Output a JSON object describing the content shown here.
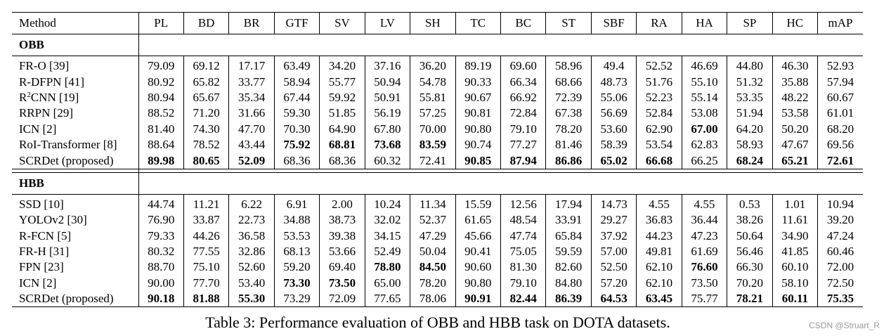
{
  "columns": [
    "Method",
    "PL",
    "BD",
    "BR",
    "GTF",
    "SV",
    "LV",
    "SH",
    "TC",
    "BC",
    "ST",
    "SBF",
    "RA",
    "HA",
    "SP",
    "HC",
    "mAP"
  ],
  "sections": [
    {
      "title": "OBB",
      "rows": [
        {
          "method": "FR-O [39]",
          "values": [
            "79.09",
            "69.12",
            "17.17",
            "63.49",
            "34.20",
            "37.16",
            "36.20",
            "89.19",
            "69.60",
            "58.96",
            "49.4",
            "52.52",
            "46.69",
            "44.80",
            "46.30",
            "52.93"
          ],
          "bold": []
        },
        {
          "method": "R-DFPN [41]",
          "values": [
            "80.92",
            "65.82",
            "33.77",
            "58.94",
            "55.77",
            "50.94",
            "54.78",
            "90.33",
            "66.34",
            "68.66",
            "48.73",
            "51.76",
            "55.10",
            "51.32",
            "35.88",
            "57.94"
          ],
          "bold": []
        },
        {
          "method_pre": "R",
          "method_sup": "2",
          "method_post": "CNN [19]",
          "values": [
            "80.94",
            "65.67",
            "35.34",
            "67.44",
            "59.92",
            "50.91",
            "55.81",
            "90.67",
            "66.92",
            "72.39",
            "55.06",
            "52.23",
            "55.14",
            "53.35",
            "48.22",
            "60.67"
          ],
          "bold": []
        },
        {
          "method": "RRPN [29]",
          "values": [
            "88.52",
            "71.20",
            "31.66",
            "59.30",
            "51.85",
            "56.19",
            "57.25",
            "90.81",
            "72.84",
            "67.38",
            "56.69",
            "52.84",
            "53.08",
            "51.94",
            "53.58",
            "61.01"
          ],
          "bold": []
        },
        {
          "method": "ICN [2]",
          "values": [
            "81.40",
            "74.30",
            "47.70",
            "70.30",
            "64.90",
            "67.80",
            "70.00",
            "90.80",
            "79.10",
            "78.20",
            "53.60",
            "62.90",
            "67.00",
            "64.20",
            "50.20",
            "68.20"
          ],
          "bold": [
            12
          ]
        },
        {
          "method": "RoI-Transformer [8]",
          "values": [
            "88.64",
            "78.52",
            "43.44",
            "75.92",
            "68.81",
            "73.68",
            "83.59",
            "90.74",
            "77.27",
            "81.46",
            "58.39",
            "53.54",
            "62.83",
            "58.93",
            "47.67",
            "69.56"
          ],
          "bold": [
            3,
            4,
            5,
            6
          ]
        },
        {
          "method": "SCRDet (proposed)",
          "values": [
            "89.98",
            "80.65",
            "52.09",
            "68.36",
            "68.36",
            "60.32",
            "72.41",
            "90.85",
            "87.94",
            "86.86",
            "65.02",
            "66.68",
            "66.25",
            "68.24",
            "65.21",
            "72.61"
          ],
          "bold": [
            0,
            1,
            2,
            7,
            8,
            9,
            10,
            11,
            13,
            14,
            15
          ]
        }
      ]
    },
    {
      "title": "HBB",
      "rows": [
        {
          "method": "SSD [10]",
          "values": [
            "44.74",
            "11.21",
            "6.22",
            "6.91",
            "2.00",
            "10.24",
            "11.34",
            "15.59",
            "12.56",
            "17.94",
            "14.73",
            "4.55",
            "4.55",
            "0.53",
            "1.01",
            "10.94"
          ],
          "bold": []
        },
        {
          "method": "YOLOv2 [30]",
          "values": [
            "76.90",
            "33.87",
            "22.73",
            "34.88",
            "38.73",
            "32.02",
            "52.37",
            "61.65",
            "48.54",
            "33.91",
            "29.27",
            "36.83",
            "36.44",
            "38.26",
            "11.61",
            "39.20"
          ],
          "bold": []
        },
        {
          "method": "R-FCN [5]",
          "values": [
            "79.33",
            "44.26",
            "36.58",
            "53.53",
            "39.38",
            "34.15",
            "47.29",
            "45.66",
            "47.74",
            "65.84",
            "37.92",
            "44.23",
            "47.23",
            "50.64",
            "34.90",
            "47.24"
          ],
          "bold": []
        },
        {
          "method": "FR-H [31]",
          "values": [
            "80.32",
            "77.55",
            "32.86",
            "68.13",
            "53.66",
            "52.49",
            "50.04",
            "90.41",
            "75.05",
            "59.59",
            "57.00",
            "49.81",
            "61.69",
            "56.46",
            "41.85",
            "60.46"
          ],
          "bold": []
        },
        {
          "method": "FPN [23]",
          "values": [
            "88.70",
            "75.10",
            "52.60",
            "59.20",
            "69.40",
            "78.80",
            "84.50",
            "90.60",
            "81.30",
            "82.60",
            "52.50",
            "62.10",
            "76.60",
            "66.30",
            "60.10",
            "72.00"
          ],
          "bold": [
            5,
            6,
            12
          ]
        },
        {
          "method": "ICN [2]",
          "values": [
            "90.00",
            "77.70",
            "53.40",
            "73.30",
            "73.50",
            "65.00",
            "78.20",
            "90.80",
            "79.10",
            "84.80",
            "57.20",
            "62.10",
            "73.50",
            "70.20",
            "58.10",
            "72.50"
          ],
          "bold": [
            3,
            4
          ]
        },
        {
          "method": "SCRDet (proposed)",
          "values": [
            "90.18",
            "81.88",
            "55.30",
            "73.29",
            "72.09",
            "77.65",
            "78.06",
            "90.91",
            "82.44",
            "86.39",
            "64.53",
            "63.45",
            "75.77",
            "78.21",
            "60.11",
            "75.35"
          ],
          "bold": [
            0,
            1,
            2,
            7,
            8,
            9,
            10,
            11,
            13,
            14,
            15
          ]
        }
      ]
    }
  ],
  "caption": "Table 3: Performance evaluation of OBB and HBB task on DOTA datasets.",
  "watermark": "CSDN @Struart_R"
}
